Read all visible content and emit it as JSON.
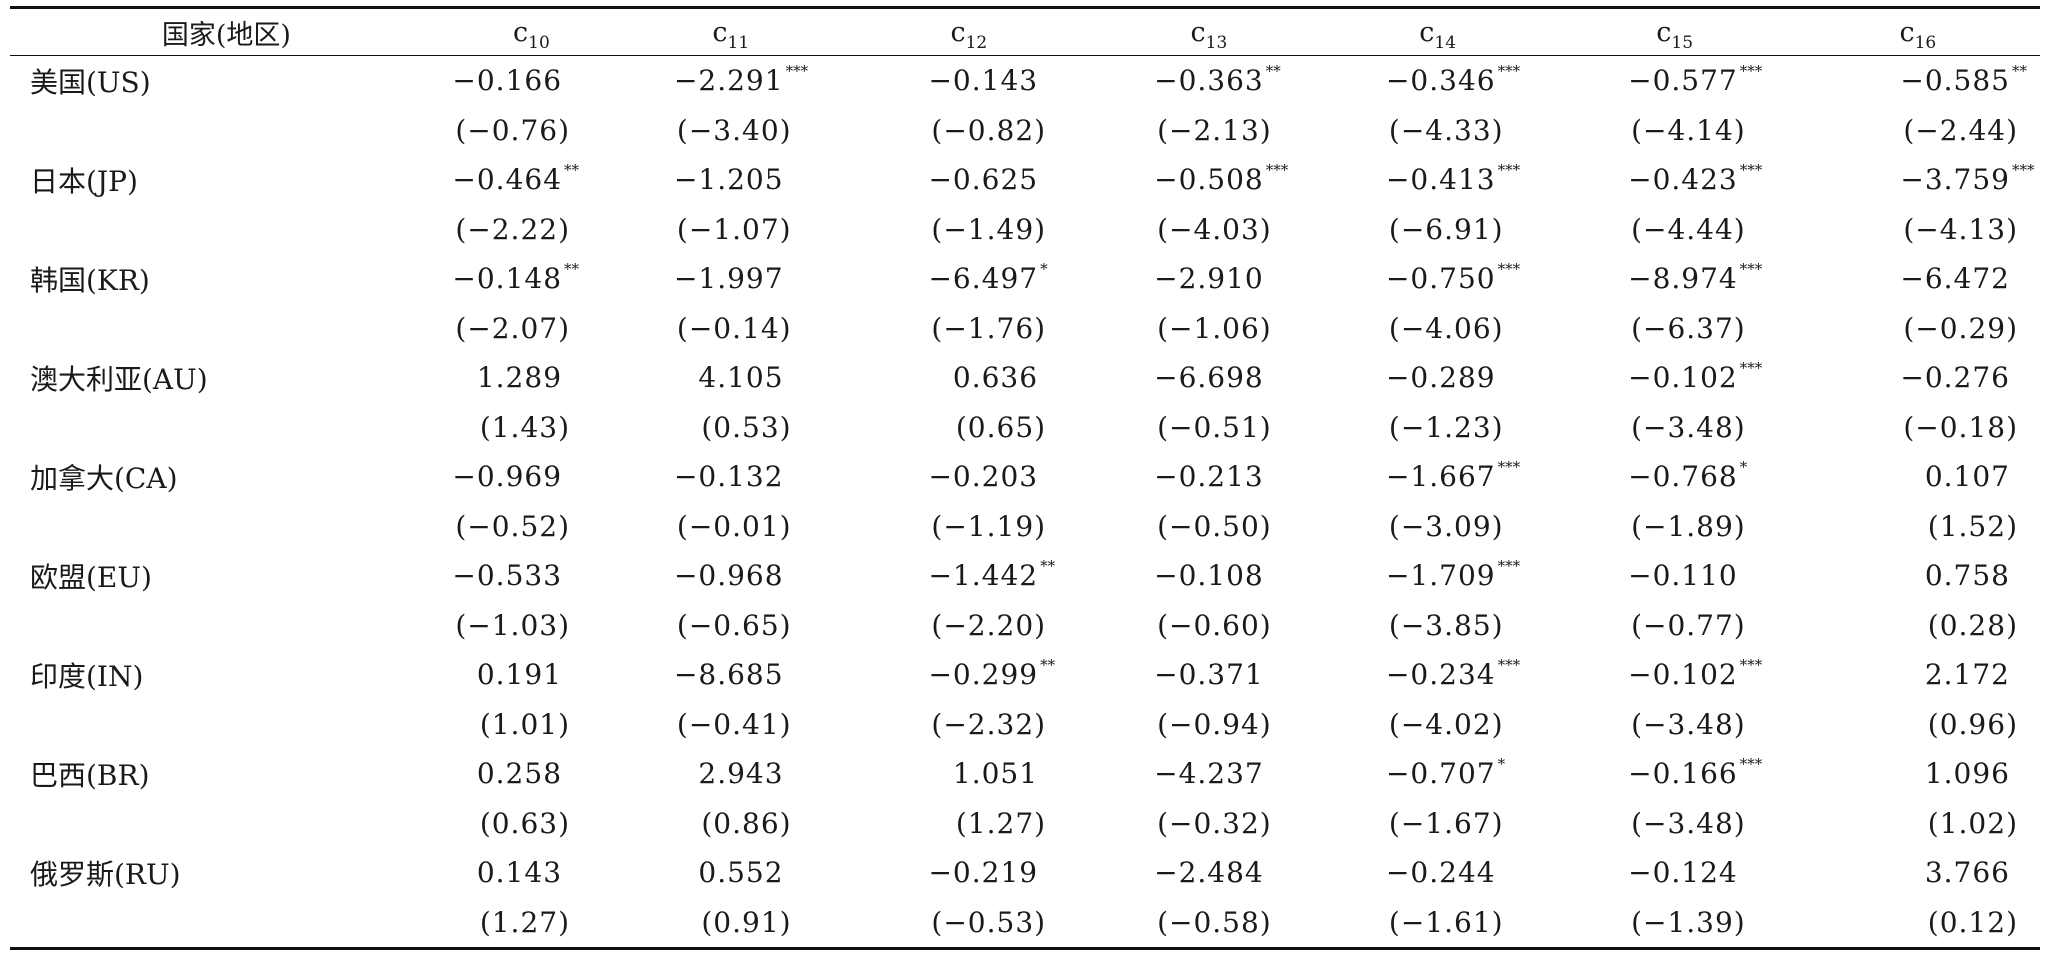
{
  "table": {
    "header": {
      "first": "国家(地区)",
      "columns": [
        {
          "base": "c",
          "sub": "10"
        },
        {
          "base": "c",
          "sub": "11"
        },
        {
          "base": "c",
          "sub": "12"
        },
        {
          "base": "c",
          "sub": "13"
        },
        {
          "base": "c",
          "sub": "14"
        },
        {
          "base": "c",
          "sub": "15"
        },
        {
          "base": "c",
          "sub": "16"
        }
      ]
    },
    "rows": [
      {
        "name": "美国(US)",
        "coef": [
          {
            "v": "−0.166",
            "s": ""
          },
          {
            "v": "−2.291",
            "s": "***"
          },
          {
            "v": "−0.143",
            "s": ""
          },
          {
            "v": "−0.363",
            "s": "**"
          },
          {
            "v": "−0.346",
            "s": "***"
          },
          {
            "v": "−0.577",
            "s": "***"
          },
          {
            "v": "−0.585",
            "s": "**"
          }
        ],
        "t": [
          "(−0.76)",
          "(−3.40)",
          "(−0.82)",
          "(−2.13)",
          "(−4.33)",
          "(−4.14)",
          "(−2.44)"
        ]
      },
      {
        "name": "日本(JP)",
        "coef": [
          {
            "v": "−0.464",
            "s": "**"
          },
          {
            "v": "−1.205",
            "s": ""
          },
          {
            "v": "−0.625",
            "s": ""
          },
          {
            "v": "−0.508",
            "s": "***"
          },
          {
            "v": "−0.413",
            "s": "***"
          },
          {
            "v": "−0.423",
            "s": "***"
          },
          {
            "v": "−3.759",
            "s": "***"
          }
        ],
        "t": [
          "(−2.22)",
          "(−1.07)",
          "(−1.49)",
          "(−4.03)",
          "(−6.91)",
          "(−4.44)",
          "(−4.13)"
        ]
      },
      {
        "name": "韩国(KR)",
        "coef": [
          {
            "v": "−0.148",
            "s": "**"
          },
          {
            "v": "−1.997",
            "s": ""
          },
          {
            "v": "−6.497",
            "s": "*"
          },
          {
            "v": "−2.910",
            "s": ""
          },
          {
            "v": "−0.750",
            "s": "***"
          },
          {
            "v": "−8.974",
            "s": "***"
          },
          {
            "v": "−6.472",
            "s": ""
          }
        ],
        "t": [
          "(−2.07)",
          "(−0.14)",
          "(−1.76)",
          "(−1.06)",
          "(−4.06)",
          "(−6.37)",
          "(−0.29)"
        ]
      },
      {
        "name": "澳大利亚(AU)",
        "coef": [
          {
            "v": "1.289",
            "s": ""
          },
          {
            "v": "4.105",
            "s": ""
          },
          {
            "v": "0.636",
            "s": ""
          },
          {
            "v": "−6.698",
            "s": ""
          },
          {
            "v": "−0.289",
            "s": ""
          },
          {
            "v": "−0.102",
            "s": "***"
          },
          {
            "v": "−0.276",
            "s": ""
          }
        ],
        "t": [
          "(1.43)",
          "(0.53)",
          "(0.65)",
          "(−0.51)",
          "(−1.23)",
          "(−3.48)",
          "(−0.18)"
        ]
      },
      {
        "name": "加拿大(CA)",
        "coef": [
          {
            "v": "−0.969",
            "s": ""
          },
          {
            "v": "−0.132",
            "s": ""
          },
          {
            "v": "−0.203",
            "s": ""
          },
          {
            "v": "−0.213",
            "s": ""
          },
          {
            "v": "−1.667",
            "s": "***"
          },
          {
            "v": "−0.768",
            "s": "*"
          },
          {
            "v": "0.107",
            "s": ""
          }
        ],
        "t": [
          "(−0.52)",
          "(−0.01)",
          "(−1.19)",
          "(−0.50)",
          "(−3.09)",
          "(−1.89)",
          "(1.52)"
        ]
      },
      {
        "name": "欧盟(EU)",
        "coef": [
          {
            "v": "−0.533",
            "s": ""
          },
          {
            "v": "−0.968",
            "s": ""
          },
          {
            "v": "−1.442",
            "s": "**"
          },
          {
            "v": "−0.108",
            "s": ""
          },
          {
            "v": "−1.709",
            "s": "***"
          },
          {
            "v": "−0.110",
            "s": ""
          },
          {
            "v": "0.758",
            "s": ""
          }
        ],
        "t": [
          "(−1.03)",
          "(−0.65)",
          "(−2.20)",
          "(−0.60)",
          "(−3.85)",
          "(−0.77)",
          "(0.28)"
        ]
      },
      {
        "name": "印度(IN)",
        "coef": [
          {
            "v": "0.191",
            "s": ""
          },
          {
            "v": "−8.685",
            "s": ""
          },
          {
            "v": "−0.299",
            "s": "**"
          },
          {
            "v": "−0.371",
            "s": ""
          },
          {
            "v": "−0.234",
            "s": "***"
          },
          {
            "v": "−0.102",
            "s": "***"
          },
          {
            "v": "2.172",
            "s": ""
          }
        ],
        "t": [
          "(1.01)",
          "(−0.41)",
          "(−2.32)",
          "(−0.94)",
          "(−4.02)",
          "(−3.48)",
          "(0.96)"
        ]
      },
      {
        "name": "巴西(BR)",
        "coef": [
          {
            "v": "0.258",
            "s": ""
          },
          {
            "v": "2.943",
            "s": ""
          },
          {
            "v": "1.051",
            "s": ""
          },
          {
            "v": "−4.237",
            "s": ""
          },
          {
            "v": "−0.707",
            "s": "*"
          },
          {
            "v": "−0.166",
            "s": "***"
          },
          {
            "v": "1.096",
            "s": ""
          }
        ],
        "t": [
          "(0.63)",
          "(0.86)",
          "(1.27)",
          "(−0.32)",
          "(−1.67)",
          "(−3.48)",
          "(1.02)"
        ]
      },
      {
        "name": "俄罗斯(RU)",
        "coef": [
          {
            "v": "0.143",
            "s": ""
          },
          {
            "v": "0.552",
            "s": ""
          },
          {
            "v": "−0.219",
            "s": ""
          },
          {
            "v": "−2.484",
            "s": ""
          },
          {
            "v": "−0.244",
            "s": ""
          },
          {
            "v": "−0.124",
            "s": ""
          },
          {
            "v": "3.766",
            "s": ""
          }
        ],
        "t": [
          "(1.27)",
          "(0.91)",
          "(−0.53)",
          "(−0.58)",
          "(−1.61)",
          "(−1.39)",
          "(0.12)"
        ]
      }
    ]
  }
}
